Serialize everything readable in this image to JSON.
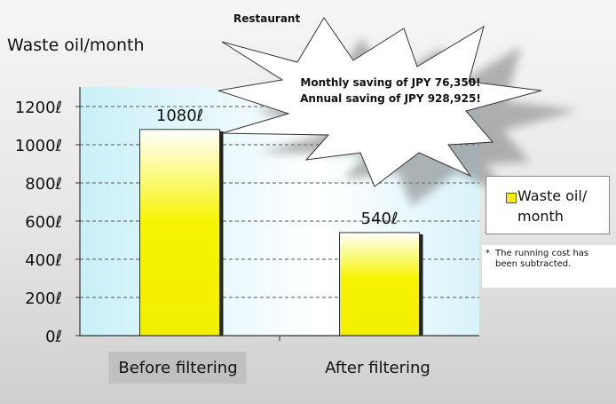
{
  "page": {
    "title": "Restaurant"
  },
  "annotation": {
    "lines": [
      "Monthly saving of JPY 76,350!",
      "Annual saving of JPY 928,925!"
    ]
  },
  "legend": {
    "label": "Waste oil/\nmonth"
  },
  "footnote": {
    "mark": "*",
    "text": "The running cost has been subtracted."
  },
  "colors": {
    "bar": "#f4f000",
    "plot_bg": "#d9f6fb",
    "burst": "#ffffff"
  },
  "chart_data": {
    "type": "bar",
    "ylabel": "Waste oil/month",
    "categories": [
      "Before filtering",
      "After filtering"
    ],
    "series": [
      {
        "name": "Waste oil/ month",
        "values": [
          1080,
          540
        ]
      }
    ],
    "value_labels": [
      "1080ℓ",
      "540ℓ"
    ],
    "ylim": [
      0,
      1200
    ],
    "yticks": [
      0,
      200,
      400,
      600,
      800,
      1000,
      1200
    ],
    "ytick_labels": [
      "0ℓ",
      "200ℓ",
      "400ℓ",
      "600ℓ",
      "800ℓ",
      "1000ℓ",
      "1200ℓ"
    ],
    "grid": true,
    "legend_position": "right"
  }
}
